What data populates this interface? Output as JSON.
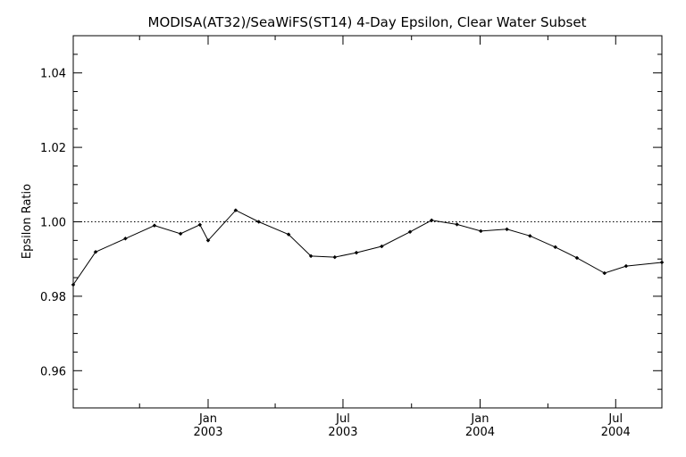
{
  "chart_data": {
    "type": "line",
    "title": "MODISA(AT32)/SeaWiFS(ST14) 4-Day Epsilon, Clear Water Subset",
    "xlabel": "",
    "ylabel": "Epsilon Ratio",
    "ylim": [
      0.95,
      1.05
    ],
    "xlim": [
      "2002-07-04",
      "2004-09-01"
    ],
    "yticks": [
      0.96,
      0.98,
      1.0,
      1.02,
      1.04
    ],
    "ytick_labels": [
      "0.96",
      "0.98",
      "1.00",
      "1.02",
      "1.04"
    ],
    "xticks": [
      {
        "date": "2003-01-01",
        "label_top": "Jan",
        "label_bottom": "2003"
      },
      {
        "date": "2003-07-01",
        "label_top": "Jul",
        "label_bottom": "2003"
      },
      {
        "date": "2004-01-01",
        "label_top": "Jan",
        "label_bottom": "2004"
      },
      {
        "date": "2004-07-01",
        "label_top": "Jul",
        "label_bottom": "2004"
      }
    ],
    "reference_line": {
      "y": 1.0,
      "style": "dotted"
    },
    "grid": false,
    "series": [
      {
        "x": [
          "2002-07-04",
          "2002-08-03",
          "2002-09-12",
          "2002-10-21",
          "2002-11-25",
          "2002-12-21",
          "2003-01-01",
          "2003-02-07",
          "2003-03-10",
          "2003-04-19",
          "2003-05-19",
          "2003-06-20",
          "2003-07-19",
          "2003-08-22",
          "2003-09-29",
          "2003-10-28",
          "2003-12-01",
          "2004-01-02",
          "2004-02-06",
          "2004-03-08",
          "2004-04-11",
          "2004-05-10",
          "2004-06-16",
          "2004-07-15",
          "2004-09-01"
        ],
        "y": [
          0.9831,
          0.9919,
          0.9955,
          0.999,
          0.9968,
          0.9992,
          0.995,
          1.0031,
          1.0,
          0.9966,
          0.9908,
          0.9905,
          0.9917,
          0.9934,
          0.9973,
          1.0004,
          0.9993,
          0.9975,
          0.998,
          0.9962,
          0.9932,
          0.9903,
          0.9862,
          0.9881,
          0.9891
        ]
      }
    ]
  }
}
